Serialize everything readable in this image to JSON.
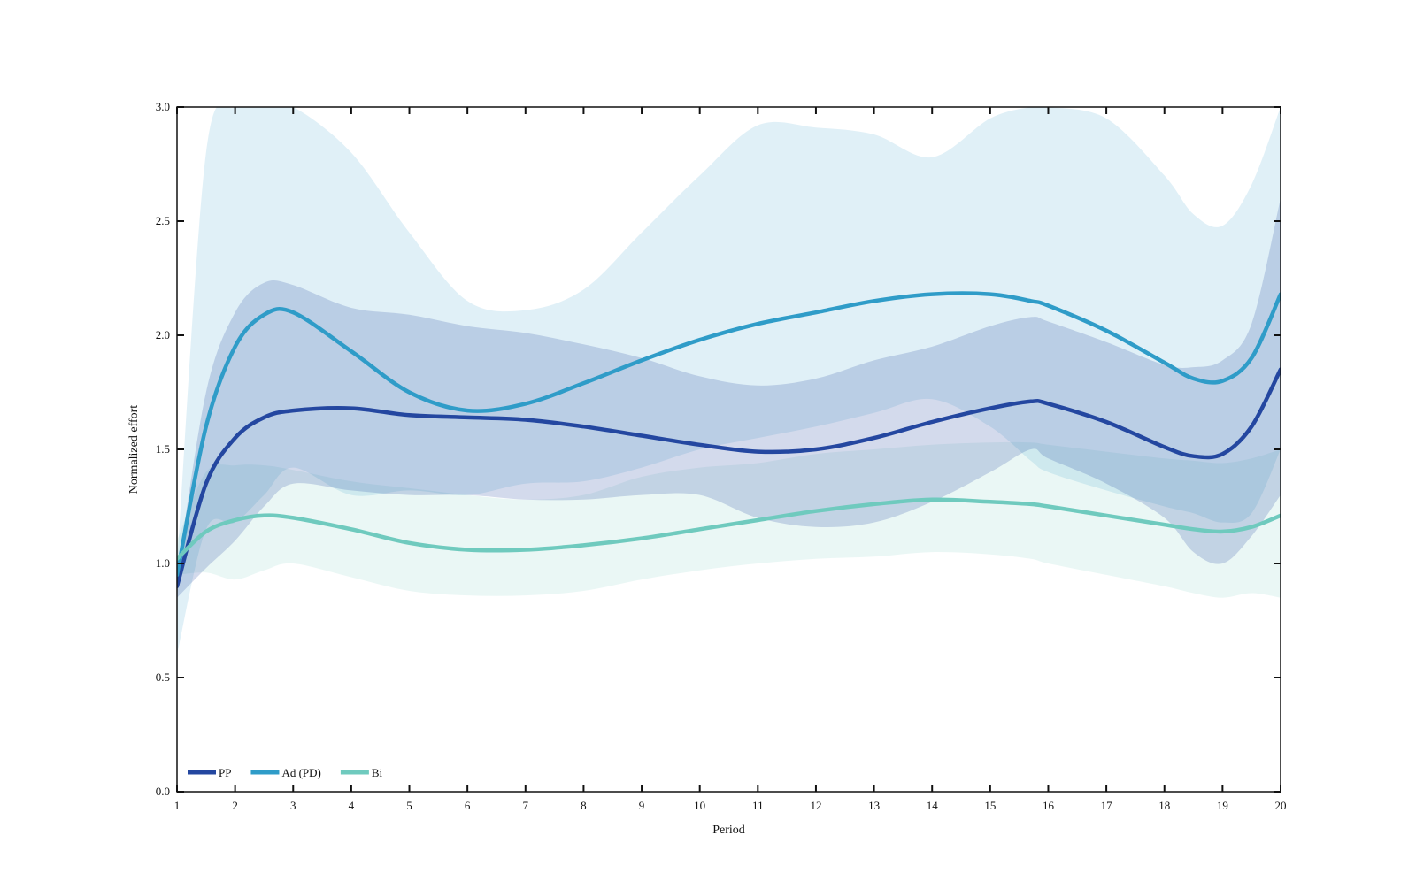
{
  "chart_data": {
    "type": "line",
    "title": "",
    "xlabel": "Period",
    "ylabel": "Normalized effort",
    "xlim": [
      1,
      20
    ],
    "ylim": [
      0,
      3.0
    ],
    "x_ticks": [
      1,
      2,
      3,
      4,
      5,
      6,
      7,
      8,
      9,
      10,
      11,
      12,
      13,
      14,
      15,
      16,
      17,
      18,
      19,
      20
    ],
    "y_ticks": [
      0,
      0.5,
      1.0,
      1.5,
      2.0,
      2.5,
      3.0
    ],
    "y_tick_labels": [
      "0.0",
      "0.5",
      "1.0",
      "1.5",
      "2.0",
      "2.5",
      "3.0"
    ],
    "grid": false,
    "legend_position": "bottom-left",
    "x": [
      1,
      1.5,
      2,
      2.5,
      3,
      4,
      5,
      6,
      7,
      8,
      9,
      10,
      11,
      12,
      13,
      14,
      15,
      15.7,
      16,
      17,
      18,
      18.5,
      19,
      19.5,
      20
    ],
    "series": [
      {
        "name": "PP",
        "color": "#2447a0",
        "values": [
          0.9,
          1.35,
          1.55,
          1.64,
          1.67,
          1.68,
          1.65,
          1.64,
          1.63,
          1.6,
          1.56,
          1.52,
          1.49,
          1.5,
          1.55,
          1.62,
          1.68,
          1.71,
          1.7,
          1.62,
          1.51,
          1.47,
          1.48,
          1.6,
          1.85
        ],
        "band_upper": [
          0.95,
          1.75,
          2.1,
          2.23,
          2.22,
          2.12,
          2.09,
          2.04,
          2.01,
          1.96,
          1.9,
          1.82,
          1.78,
          1.81,
          1.89,
          1.95,
          2.04,
          2.08,
          2.06,
          1.97,
          1.87,
          1.86,
          1.89,
          2.05,
          2.6
        ],
        "band_lower": [
          0.85,
          0.98,
          1.1,
          1.25,
          1.35,
          1.32,
          1.3,
          1.3,
          1.28,
          1.28,
          1.3,
          1.3,
          1.2,
          1.16,
          1.18,
          1.27,
          1.4,
          1.5,
          1.46,
          1.35,
          1.2,
          1.05,
          1.0,
          1.12,
          1.3
        ]
      },
      {
        "name": "Ad (PD)",
        "color": "#2f9cc8",
        "values": [
          0.95,
          1.6,
          1.95,
          2.09,
          2.1,
          1.93,
          1.75,
          1.67,
          1.7,
          1.79,
          1.89,
          1.98,
          2.05,
          2.1,
          2.15,
          2.18,
          2.18,
          2.15,
          2.13,
          2.02,
          1.88,
          1.81,
          1.8,
          1.9,
          2.18
        ],
        "band_upper": [
          1.0,
          2.8,
          3.0,
          3.0,
          3.0,
          2.8,
          2.45,
          2.15,
          2.11,
          2.2,
          2.45,
          2.7,
          2.92,
          2.91,
          2.88,
          2.78,
          2.95,
          3.0,
          3.0,
          2.95,
          2.7,
          2.53,
          2.48,
          2.66,
          3.0
        ],
        "band_lower": [
          0.6,
          1.15,
          1.18,
          1.3,
          1.42,
          1.3,
          1.32,
          1.3,
          1.35,
          1.36,
          1.42,
          1.5,
          1.55,
          1.6,
          1.66,
          1.72,
          1.6,
          1.45,
          1.4,
          1.32,
          1.25,
          1.22,
          1.18,
          1.22,
          1.5
        ]
      },
      {
        "name": "Bi",
        "color": "#6fcabe",
        "values": [
          1.02,
          1.14,
          1.19,
          1.21,
          1.2,
          1.15,
          1.09,
          1.06,
          1.06,
          1.08,
          1.11,
          1.15,
          1.19,
          1.23,
          1.26,
          1.28,
          1.27,
          1.26,
          1.25,
          1.21,
          1.17,
          1.15,
          1.14,
          1.16,
          1.21
        ],
        "band_upper": [
          1.1,
          1.4,
          1.43,
          1.43,
          1.41,
          1.36,
          1.33,
          1.3,
          1.28,
          1.3,
          1.38,
          1.42,
          1.44,
          1.48,
          1.5,
          1.52,
          1.53,
          1.53,
          1.52,
          1.49,
          1.46,
          1.45,
          1.44,
          1.46,
          1.5
        ],
        "band_lower": [
          0.95,
          0.96,
          0.93,
          0.97,
          1.0,
          0.94,
          0.88,
          0.86,
          0.86,
          0.88,
          0.93,
          0.97,
          1.0,
          1.02,
          1.03,
          1.05,
          1.04,
          1.02,
          1.0,
          0.95,
          0.9,
          0.87,
          0.85,
          0.87,
          0.85
        ]
      }
    ]
  }
}
